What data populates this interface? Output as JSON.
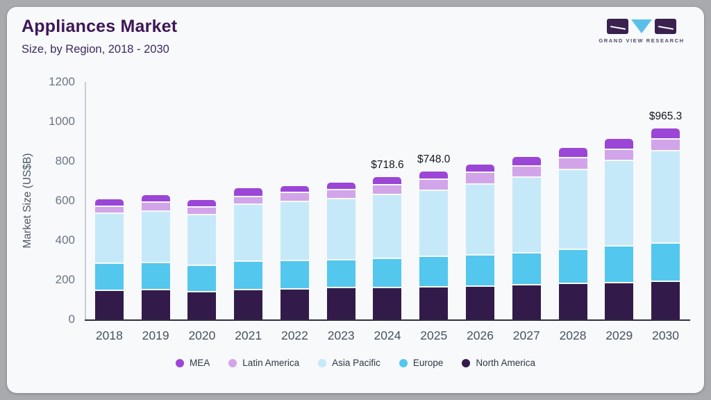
{
  "logo": {
    "text": "GRAND VIEW RESEARCH"
  },
  "chart_data": {
    "type": "bar",
    "stacked": true,
    "title": "Appliances Market",
    "subtitle": "Size, by Region, 2018 - 2030",
    "ylabel": "Market Size (US$B)",
    "ylim": [
      0,
      1200
    ],
    "yticks": [
      0,
      200,
      400,
      600,
      800,
      1000,
      1200
    ],
    "grid": false,
    "legend_position": "bottom",
    "categories": [
      "2018",
      "2019",
      "2020",
      "2021",
      "2022",
      "2023",
      "2024",
      "2025",
      "2026",
      "2027",
      "2028",
      "2029",
      "2030"
    ],
    "series": [
      {
        "name": "North America",
        "color": "#321b4a",
        "values": [
          150,
          154,
          144,
          154,
          158,
          164,
          166,
          169,
          172,
          179,
          186,
          189,
          196
        ]
      },
      {
        "name": "Europe",
        "color": "#53c7ee",
        "values": [
          138,
          137,
          134,
          144,
          145,
          141,
          147,
          153,
          158,
          162,
          172,
          186,
          193
        ]
      },
      {
        "name": "Asia Pacific",
        "color": "#c6e9f9",
        "values": [
          252,
          260,
          256,
          288,
          297,
          309,
          322,
          335,
          358,
          382,
          402,
          432,
          467
        ]
      },
      {
        "name": "Latin America",
        "color": "#d2a4e9",
        "values": [
          35,
          44,
          38,
          39,
          45,
          46,
          49,
          56,
          58,
          56,
          61,
          56,
          60
        ]
      },
      {
        "name": "MEA",
        "color": "#9b46d6",
        "values": [
          32,
          32,
          32,
          38,
          29,
          31,
          34.6,
          35,
          37,
          42,
          45,
          49,
          49.3
        ]
      }
    ],
    "legend_order": [
      "MEA",
      "Latin America",
      "Asia Pacific",
      "Europe",
      "North America"
    ],
    "annotations": {
      "2024": "$718.6",
      "2025": "$748.0",
      "2030": "$965.3"
    }
  }
}
